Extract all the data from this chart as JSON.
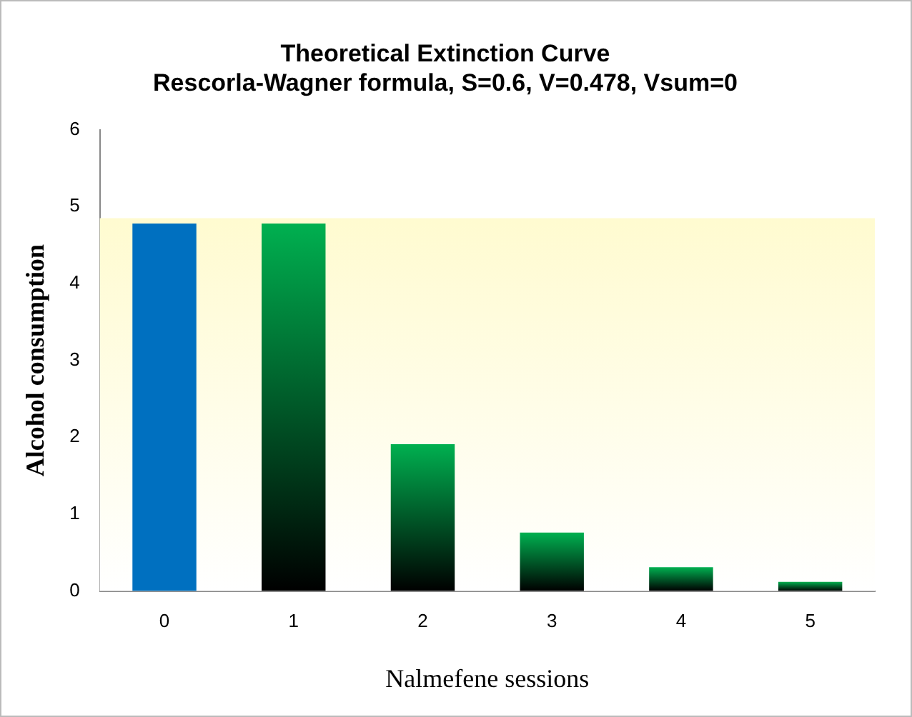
{
  "chart_data": {
    "type": "bar",
    "title": "Theoretical Extinction Curve",
    "subtitle": "Rescorla-Wagner formula, S=0.6, V=0.478, Vsum=0",
    "xlabel": "Nalmefene sessions",
    "ylabel": "Alcohol consumption",
    "categories": [
      "0",
      "1",
      "2",
      "3",
      "4",
      "5"
    ],
    "values": [
      4.78,
      4.78,
      1.91,
      0.76,
      0.31,
      0.12
    ],
    "colors": [
      "#0070c0",
      "#00b050",
      "#00b050",
      "#00b050",
      "#00b050",
      "#00b050"
    ],
    "ylim": [
      0,
      6
    ],
    "yticks": [
      0,
      1,
      2,
      3,
      4,
      5,
      6
    ],
    "grid": false,
    "legend": false,
    "bands": [
      {
        "axis": "y",
        "from": 0,
        "to": 4.85,
        "color": "#fffbd0"
      }
    ]
  }
}
